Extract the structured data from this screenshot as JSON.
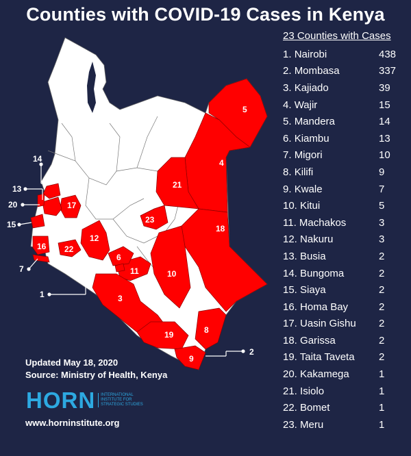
{
  "title": "Counties with COVID-19 Cases in Kenya",
  "legend": {
    "header": "23 Counties with Cases",
    "items": [
      {
        "rank": "1.",
        "name": "Nairobi",
        "count": "438"
      },
      {
        "rank": "2.",
        "name": "Mombasa",
        "count": "337"
      },
      {
        "rank": "3.",
        "name": "Kajiado",
        "count": "39"
      },
      {
        "rank": "4.",
        "name": "Wajir",
        "count": "15"
      },
      {
        "rank": "5.",
        "name": "Mandera",
        "count": "14"
      },
      {
        "rank": "6.",
        "name": "Kiambu",
        "count": "13"
      },
      {
        "rank": "7.",
        "name": "Migori",
        "count": "10"
      },
      {
        "rank": "8.",
        "name": "Kilifi",
        "count": "9"
      },
      {
        "rank": "9.",
        "name": "Kwale",
        "count": "7"
      },
      {
        "rank": "10.",
        "name": "Kitui",
        "count": "5"
      },
      {
        "rank": "11.",
        "name": "Machakos",
        "count": "3"
      },
      {
        "rank": "12.",
        "name": "Nakuru",
        "count": "3"
      },
      {
        "rank": "13.",
        "name": "Busia",
        "count": "2"
      },
      {
        "rank": "14.",
        "name": "Bungoma",
        "count": "2"
      },
      {
        "rank": "15.",
        "name": "Siaya",
        "count": "2"
      },
      {
        "rank": "16.",
        "name": "Homa Bay",
        "count": "2"
      },
      {
        "rank": "17.",
        "name": "Uasin Gishu",
        "count": "2"
      },
      {
        "rank": "18.",
        "name": "Garissa",
        "count": "2"
      },
      {
        "rank": "19.",
        "name": "Taita Taveta",
        "count": "2"
      },
      {
        "rank": "20.",
        "name": "Kakamega",
        "count": "1"
      },
      {
        "rank": "21.",
        "name": "Isiolo",
        "count": "1"
      },
      {
        "rank": "22.",
        "name": "Bomet",
        "count": "1"
      },
      {
        "rank": "23.",
        "name": "Meru",
        "count": "1"
      }
    ]
  },
  "map": {
    "labels": [
      "1",
      "2",
      "3",
      "4",
      "5",
      "6",
      "7",
      "8",
      "9",
      "10",
      "11",
      "12",
      "13",
      "14",
      "15",
      "16",
      "17",
      "18",
      "19",
      "20",
      "21",
      "22",
      "23"
    ],
    "colors": {
      "affected": "#ff0000",
      "unaffected": "#ffffff",
      "background": "#1e2545",
      "border": "#555555"
    }
  },
  "footer": {
    "updated": "Updated May 18, 2020",
    "source": "Source: Ministry of Health, Kenya",
    "logo_word": "HORN",
    "logo_subtitle": "INTERNATIONAL INSTITUTE FOR STRATEGIC STUDIES",
    "website": "www.horninstitute.org"
  }
}
